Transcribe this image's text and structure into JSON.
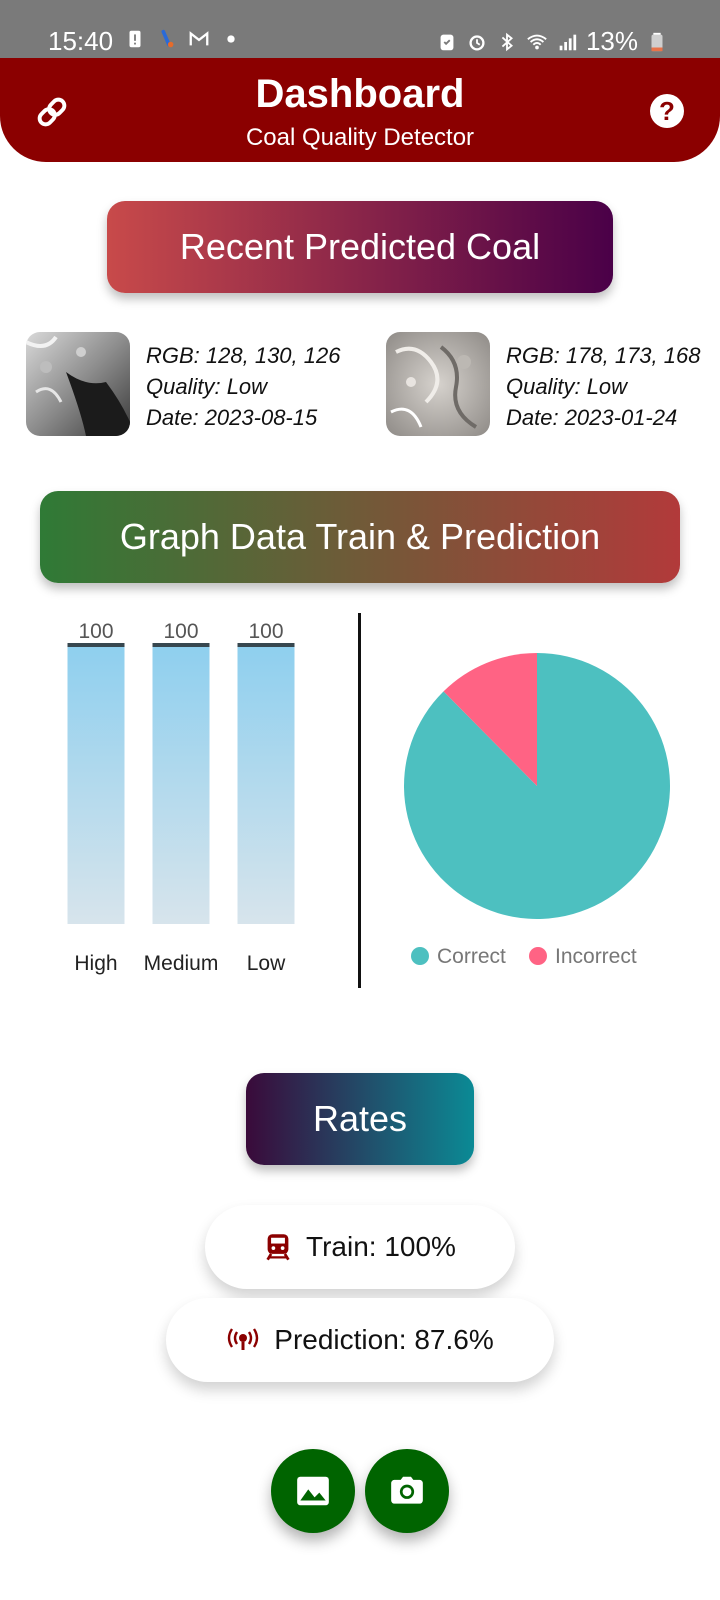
{
  "status_bar": {
    "time": "15:40",
    "battery": "13%",
    "icons_left": [
      "battery-saver-icon",
      "app-notification-icon",
      "gmail-icon",
      "dot-icon"
    ],
    "icons_right": [
      "storage-icon",
      "alarm-icon",
      "bluetooth-icon",
      "wifi-icon",
      "signal-icon",
      "battery-icon"
    ]
  },
  "header": {
    "title": "Dashboard",
    "subtitle": "Coal Quality Detector",
    "left_icon": "link-icon",
    "right_icon": "help-icon",
    "help_glyph": "?",
    "color": "#8b0000"
  },
  "recent": {
    "title": "Recent Predicted Coal",
    "items": [
      {
        "rgb": "RGB: 128, 130, 126",
        "quality": "Quality: Low",
        "date": "Date: 2023-08-15"
      },
      {
        "rgb": "RGB: 178, 173, 168",
        "quality": "Quality: Low",
        "date": "Date: 2023-01-24"
      }
    ]
  },
  "graph": {
    "title": "Graph Data Train & Prediction"
  },
  "chart_data": [
    {
      "type": "bar",
      "categories": [
        "High",
        "Medium",
        "Low"
      ],
      "values": [
        100,
        100,
        100
      ],
      "ylim": [
        0,
        100
      ],
      "grid": false,
      "colors": {
        "top": "#8ecfee",
        "bottom": "#d7e4ec",
        "cap": "#37474f"
      }
    },
    {
      "type": "pie",
      "labels": [
        "Correct",
        "Incorrect"
      ],
      "values": [
        87.6,
        12.4
      ],
      "colors": [
        "#4dc0c0",
        "#ff6384"
      ],
      "legend": "bottom"
    }
  ],
  "rates": {
    "title": "Rates",
    "train_label": "Train: 100%",
    "prediction_label": "Prediction: 87.6%",
    "train_icon": "train-icon",
    "prediction_icon": "broadcast-icon"
  },
  "actions": {
    "gallery_icon": "gallery-icon",
    "camera_icon": "camera-icon",
    "color": "#006400"
  }
}
